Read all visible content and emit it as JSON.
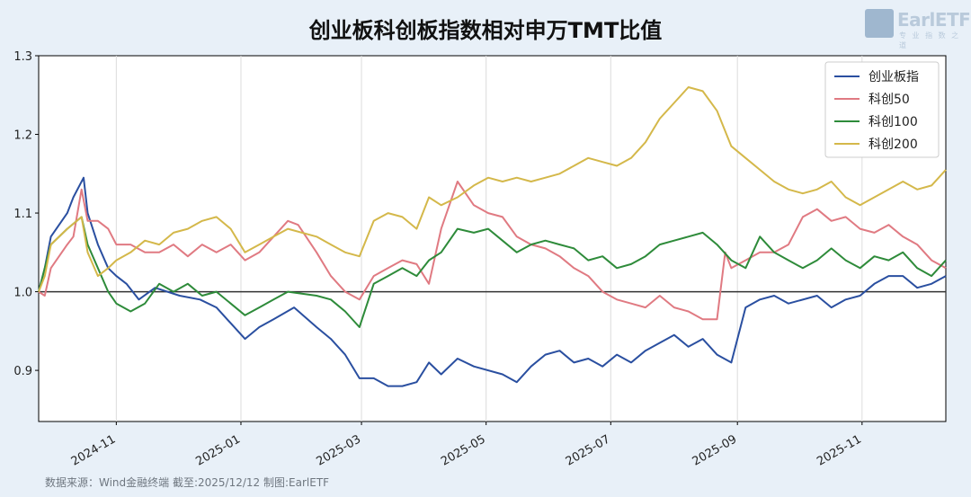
{
  "title": "创业板科创板指数相对申万TMT比值",
  "source": "数据来源：Wind金融终端 截至:2025/12/12 制图:EarlETF",
  "logo": {
    "text": "EarlETF",
    "sub": "专 业 指 数 之 道",
    "icon": "earletf-logo-icon"
  },
  "colors": {
    "background": "#e8f0f8",
    "plot_bg": "#ffffff",
    "创业板指": "#2a4fa0",
    "科创50": "#e07a82",
    "科创100": "#2e8b3a",
    "科创200": "#d4b84a",
    "baseline": "#333333"
  },
  "chart_data": {
    "type": "line",
    "title": "创业板科创板指数相对申万TMT比值",
    "x_range": [
      "2024-09-24",
      "2025-12-12"
    ],
    "ylim": [
      0.835,
      1.3
    ],
    "yticks": [
      0.9,
      1.0,
      1.1,
      1.2,
      1.3
    ],
    "ytick_labels": [
      "0.9",
      "1.0",
      "1.1",
      "1.2",
      "1.3"
    ],
    "xticks": [
      "2024-11-01",
      "2025-01-01",
      "2025-03-01",
      "2025-05-01",
      "2025-07-01",
      "2025-09-01",
      "2025-11-01"
    ],
    "xtick_labels": [
      "2024-11",
      "2025-01",
      "2025-03",
      "2025-05",
      "2025-07",
      "2025-09",
      "2025-11"
    ],
    "grid": "vertical",
    "baseline": 1.0,
    "legend_position": "top-right",
    "series": [
      {
        "name": "创业板指",
        "points": [
          [
            "2024-09-24",
            1.0
          ],
          [
            "2024-09-27",
            1.03
          ],
          [
            "2024-09-30",
            1.07
          ],
          [
            "2024-10-08",
            1.1
          ],
          [
            "2024-10-11",
            1.12
          ],
          [
            "2024-10-16",
            1.145
          ],
          [
            "2024-10-18",
            1.1
          ],
          [
            "2024-10-23",
            1.06
          ],
          [
            "2024-10-28",
            1.03
          ],
          [
            "2024-11-01",
            1.02
          ],
          [
            "2024-11-06",
            1.01
          ],
          [
            "2024-11-12",
            0.99
          ],
          [
            "2024-11-20",
            1.005
          ],
          [
            "2024-12-02",
            0.995
          ],
          [
            "2024-12-12",
            0.99
          ],
          [
            "2024-12-20",
            0.98
          ],
          [
            "2024-12-27",
            0.96
          ],
          [
            "2025-01-03",
            0.94
          ],
          [
            "2025-01-10",
            0.955
          ],
          [
            "2025-01-17",
            0.965
          ],
          [
            "2025-01-27",
            0.98
          ],
          [
            "2025-02-07",
            0.955
          ],
          [
            "2025-02-14",
            0.94
          ],
          [
            "2025-02-21",
            0.92
          ],
          [
            "2025-02-28",
            0.89
          ],
          [
            "2025-03-07",
            0.89
          ],
          [
            "2025-03-14",
            0.88
          ],
          [
            "2025-03-21",
            0.88
          ],
          [
            "2025-03-28",
            0.885
          ],
          [
            "2025-04-03",
            0.91
          ],
          [
            "2025-04-09",
            0.895
          ],
          [
            "2025-04-17",
            0.915
          ],
          [
            "2025-04-25",
            0.905
          ],
          [
            "2025-05-09",
            0.895
          ],
          [
            "2025-05-16",
            0.885
          ],
          [
            "2025-05-23",
            0.905
          ],
          [
            "2025-05-30",
            0.92
          ],
          [
            "2025-06-06",
            0.925
          ],
          [
            "2025-06-13",
            0.91
          ],
          [
            "2025-06-20",
            0.915
          ],
          [
            "2025-06-27",
            0.905
          ],
          [
            "2025-07-04",
            0.92
          ],
          [
            "2025-07-11",
            0.91
          ],
          [
            "2025-07-18",
            0.925
          ],
          [
            "2025-07-25",
            0.935
          ],
          [
            "2025-08-01",
            0.945
          ],
          [
            "2025-08-08",
            0.93
          ],
          [
            "2025-08-15",
            0.94
          ],
          [
            "2025-08-22",
            0.92
          ],
          [
            "2025-08-29",
            0.91
          ],
          [
            "2025-09-05",
            0.98
          ],
          [
            "2025-09-12",
            0.99
          ],
          [
            "2025-09-19",
            0.995
          ],
          [
            "2025-09-26",
            0.985
          ],
          [
            "2025-10-10",
            0.995
          ],
          [
            "2025-10-17",
            0.98
          ],
          [
            "2025-10-24",
            0.99
          ],
          [
            "2025-10-31",
            0.995
          ],
          [
            "2025-11-07",
            1.01
          ],
          [
            "2025-11-14",
            1.02
          ],
          [
            "2025-11-21",
            1.02
          ],
          [
            "2025-11-28",
            1.005
          ],
          [
            "2025-12-05",
            1.01
          ],
          [
            "2025-12-12",
            1.02
          ]
        ]
      },
      {
        "name": "科创50",
        "points": [
          [
            "2024-09-24",
            1.0
          ],
          [
            "2024-09-27",
            0.995
          ],
          [
            "2024-09-30",
            1.03
          ],
          [
            "2024-10-08",
            1.06
          ],
          [
            "2024-10-11",
            1.07
          ],
          [
            "2024-10-15",
            1.13
          ],
          [
            "2024-10-18",
            1.09
          ],
          [
            "2024-10-23",
            1.09
          ],
          [
            "2024-10-28",
            1.08
          ],
          [
            "2024-11-01",
            1.06
          ],
          [
            "2024-11-08",
            1.06
          ],
          [
            "2024-11-15",
            1.05
          ],
          [
            "2024-11-22",
            1.05
          ],
          [
            "2024-11-29",
            1.06
          ],
          [
            "2024-12-06",
            1.045
          ],
          [
            "2024-12-13",
            1.06
          ],
          [
            "2024-12-20",
            1.05
          ],
          [
            "2024-12-27",
            1.06
          ],
          [
            "2025-01-03",
            1.04
          ],
          [
            "2025-01-10",
            1.05
          ],
          [
            "2025-01-17",
            1.07
          ],
          [
            "2025-01-24",
            1.09
          ],
          [
            "2025-01-29",
            1.085
          ],
          [
            "2025-02-07",
            1.05
          ],
          [
            "2025-02-14",
            1.02
          ],
          [
            "2025-02-21",
            1.0
          ],
          [
            "2025-02-28",
            0.99
          ],
          [
            "2025-03-07",
            1.02
          ],
          [
            "2025-03-14",
            1.03
          ],
          [
            "2025-03-21",
            1.04
          ],
          [
            "2025-03-28",
            1.035
          ],
          [
            "2025-04-03",
            1.01
          ],
          [
            "2025-04-09",
            1.08
          ],
          [
            "2025-04-17",
            1.14
          ],
          [
            "2025-04-25",
            1.11
          ],
          [
            "2025-05-02",
            1.1
          ],
          [
            "2025-05-09",
            1.095
          ],
          [
            "2025-05-16",
            1.07
          ],
          [
            "2025-05-23",
            1.06
          ],
          [
            "2025-05-30",
            1.055
          ],
          [
            "2025-06-06",
            1.045
          ],
          [
            "2025-06-13",
            1.03
          ],
          [
            "2025-06-20",
            1.02
          ],
          [
            "2025-06-27",
            1.0
          ],
          [
            "2025-07-04",
            0.99
          ],
          [
            "2025-07-11",
            0.985
          ],
          [
            "2025-07-18",
            0.98
          ],
          [
            "2025-07-25",
            0.995
          ],
          [
            "2025-08-01",
            0.98
          ],
          [
            "2025-08-08",
            0.975
          ],
          [
            "2025-08-15",
            0.965
          ],
          [
            "2025-08-22",
            0.965
          ],
          [
            "2025-08-26",
            1.05
          ],
          [
            "2025-08-29",
            1.03
          ],
          [
            "2025-09-05",
            1.04
          ],
          [
            "2025-09-12",
            1.05
          ],
          [
            "2025-09-19",
            1.05
          ],
          [
            "2025-09-26",
            1.06
          ],
          [
            "2025-10-03",
            1.095
          ],
          [
            "2025-10-10",
            1.105
          ],
          [
            "2025-10-17",
            1.09
          ],
          [
            "2025-10-24",
            1.095
          ],
          [
            "2025-10-31",
            1.08
          ],
          [
            "2025-11-07",
            1.075
          ],
          [
            "2025-11-14",
            1.085
          ],
          [
            "2025-11-21",
            1.07
          ],
          [
            "2025-11-28",
            1.06
          ],
          [
            "2025-12-05",
            1.04
          ],
          [
            "2025-12-12",
            1.03
          ]
        ]
      },
      {
        "name": "科创100",
        "points": [
          [
            "2024-09-24",
            1.0
          ],
          [
            "2024-09-27",
            1.03
          ],
          [
            "2024-09-30",
            1.06
          ],
          [
            "2024-10-08",
            1.08
          ],
          [
            "2024-10-15",
            1.095
          ],
          [
            "2024-10-18",
            1.06
          ],
          [
            "2024-10-23",
            1.03
          ],
          [
            "2024-10-28",
            1.0
          ],
          [
            "2024-11-01",
            0.985
          ],
          [
            "2024-11-08",
            0.975
          ],
          [
            "2024-11-15",
            0.985
          ],
          [
            "2024-11-22",
            1.01
          ],
          [
            "2024-11-29",
            1.0
          ],
          [
            "2024-12-06",
            1.01
          ],
          [
            "2024-12-13",
            0.995
          ],
          [
            "2024-12-20",
            1.0
          ],
          [
            "2024-12-27",
            0.985
          ],
          [
            "2025-01-03",
            0.97
          ],
          [
            "2025-01-10",
            0.98
          ],
          [
            "2025-01-17",
            0.99
          ],
          [
            "2025-01-24",
            1.0
          ],
          [
            "2025-02-07",
            0.995
          ],
          [
            "2025-02-14",
            0.99
          ],
          [
            "2025-02-21",
            0.975
          ],
          [
            "2025-02-28",
            0.955
          ],
          [
            "2025-03-07",
            1.01
          ],
          [
            "2025-03-14",
            1.02
          ],
          [
            "2025-03-21",
            1.03
          ],
          [
            "2025-03-28",
            1.02
          ],
          [
            "2025-04-03",
            1.04
          ],
          [
            "2025-04-09",
            1.05
          ],
          [
            "2025-04-17",
            1.08
          ],
          [
            "2025-04-25",
            1.075
          ],
          [
            "2025-05-02",
            1.08
          ],
          [
            "2025-05-09",
            1.065
          ],
          [
            "2025-05-16",
            1.05
          ],
          [
            "2025-05-23",
            1.06
          ],
          [
            "2025-05-30",
            1.065
          ],
          [
            "2025-06-06",
            1.06
          ],
          [
            "2025-06-13",
            1.055
          ],
          [
            "2025-06-20",
            1.04
          ],
          [
            "2025-06-27",
            1.045
          ],
          [
            "2025-07-04",
            1.03
          ],
          [
            "2025-07-11",
            1.035
          ],
          [
            "2025-07-18",
            1.045
          ],
          [
            "2025-07-25",
            1.06
          ],
          [
            "2025-08-01",
            1.065
          ],
          [
            "2025-08-08",
            1.07
          ],
          [
            "2025-08-15",
            1.075
          ],
          [
            "2025-08-22",
            1.06
          ],
          [
            "2025-08-29",
            1.04
          ],
          [
            "2025-09-05",
            1.03
          ],
          [
            "2025-09-12",
            1.07
          ],
          [
            "2025-09-19",
            1.05
          ],
          [
            "2025-09-26",
            1.04
          ],
          [
            "2025-10-03",
            1.03
          ],
          [
            "2025-10-10",
            1.04
          ],
          [
            "2025-10-17",
            1.055
          ],
          [
            "2025-10-24",
            1.04
          ],
          [
            "2025-10-31",
            1.03
          ],
          [
            "2025-11-07",
            1.045
          ],
          [
            "2025-11-14",
            1.04
          ],
          [
            "2025-11-21",
            1.05
          ],
          [
            "2025-11-28",
            1.03
          ],
          [
            "2025-12-05",
            1.02
          ],
          [
            "2025-12-12",
            1.04
          ]
        ]
      },
      {
        "name": "科创200",
        "points": [
          [
            "2024-09-24",
            1.0
          ],
          [
            "2024-09-27",
            1.02
          ],
          [
            "2024-09-30",
            1.06
          ],
          [
            "2024-10-08",
            1.08
          ],
          [
            "2024-10-15",
            1.095
          ],
          [
            "2024-10-18",
            1.05
          ],
          [
            "2024-10-23",
            1.02
          ],
          [
            "2024-10-28",
            1.03
          ],
          [
            "2024-11-01",
            1.04
          ],
          [
            "2024-11-08",
            1.05
          ],
          [
            "2024-11-15",
            1.065
          ],
          [
            "2024-11-22",
            1.06
          ],
          [
            "2024-11-29",
            1.075
          ],
          [
            "2024-12-06",
            1.08
          ],
          [
            "2024-12-13",
            1.09
          ],
          [
            "2024-12-20",
            1.095
          ],
          [
            "2024-12-27",
            1.08
          ],
          [
            "2025-01-03",
            1.05
          ],
          [
            "2025-01-10",
            1.06
          ],
          [
            "2025-01-17",
            1.07
          ],
          [
            "2025-01-24",
            1.08
          ],
          [
            "2025-02-07",
            1.07
          ],
          [
            "2025-02-14",
            1.06
          ],
          [
            "2025-02-21",
            1.05
          ],
          [
            "2025-02-28",
            1.045
          ],
          [
            "2025-03-07",
            1.09
          ],
          [
            "2025-03-14",
            1.1
          ],
          [
            "2025-03-21",
            1.095
          ],
          [
            "2025-03-28",
            1.08
          ],
          [
            "2025-04-03",
            1.12
          ],
          [
            "2025-04-09",
            1.11
          ],
          [
            "2025-04-17",
            1.12
          ],
          [
            "2025-04-25",
            1.135
          ],
          [
            "2025-05-02",
            1.145
          ],
          [
            "2025-05-09",
            1.14
          ],
          [
            "2025-05-16",
            1.145
          ],
          [
            "2025-05-23",
            1.14
          ],
          [
            "2025-05-30",
            1.145
          ],
          [
            "2025-06-06",
            1.15
          ],
          [
            "2025-06-13",
            1.16
          ],
          [
            "2025-06-20",
            1.17
          ],
          [
            "2025-06-27",
            1.165
          ],
          [
            "2025-07-04",
            1.16
          ],
          [
            "2025-07-11",
            1.17
          ],
          [
            "2025-07-18",
            1.19
          ],
          [
            "2025-07-25",
            1.22
          ],
          [
            "2025-08-01",
            1.24
          ],
          [
            "2025-08-08",
            1.26
          ],
          [
            "2025-08-15",
            1.255
          ],
          [
            "2025-08-22",
            1.23
          ],
          [
            "2025-08-29",
            1.185
          ],
          [
            "2025-09-05",
            1.17
          ],
          [
            "2025-09-12",
            1.155
          ],
          [
            "2025-09-19",
            1.14
          ],
          [
            "2025-09-26",
            1.13
          ],
          [
            "2025-10-03",
            1.125
          ],
          [
            "2025-10-10",
            1.13
          ],
          [
            "2025-10-17",
            1.14
          ],
          [
            "2025-10-24",
            1.12
          ],
          [
            "2025-10-31",
            1.11
          ],
          [
            "2025-11-07",
            1.12
          ],
          [
            "2025-11-14",
            1.13
          ],
          [
            "2025-11-21",
            1.14
          ],
          [
            "2025-11-28",
            1.13
          ],
          [
            "2025-12-05",
            1.135
          ],
          [
            "2025-12-12",
            1.155
          ]
        ]
      }
    ]
  }
}
